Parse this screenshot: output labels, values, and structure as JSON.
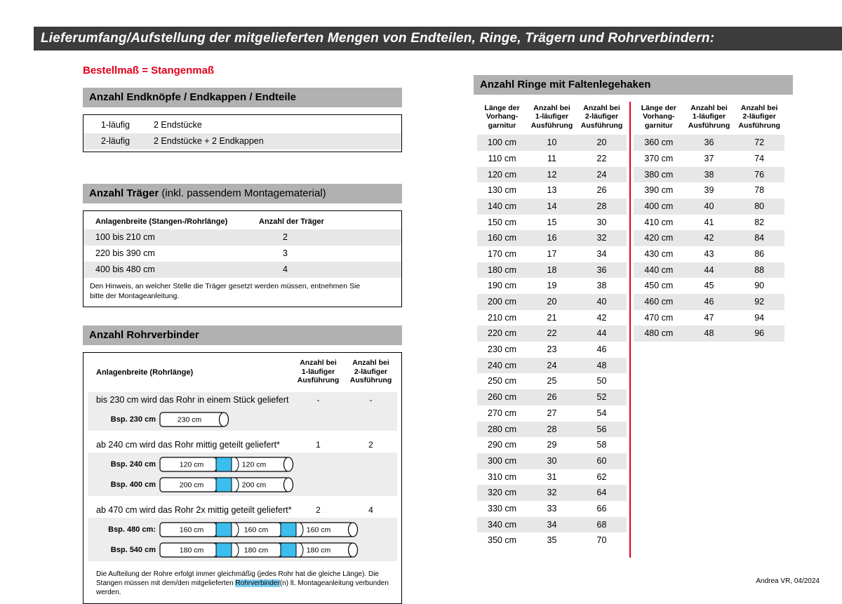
{
  "page": {
    "title": "Lieferumfang/Aufstellung der mitgelieferten Mengen von Endteilen, Ringe, Trägern und Rohrverbindern:",
    "subtitle": "Bestellmaß = Stangenmaß",
    "footer": "Andrea VR, 04/2024"
  },
  "colors": {
    "accent_red": "#e2001a",
    "header_bar_gray": "#b1b1b1",
    "title_bar_dark": "#3c3c3c",
    "row_stripe": "#e7e7e7",
    "connector_blue": "#3bbdee",
    "highlight_blue": "#7ed0f3"
  },
  "endteile": {
    "header": "Anzahl Endknöpfe / Endkappen / Endteile",
    "rows": [
      {
        "label": "1-läufig",
        "value": "2 Endstücke"
      },
      {
        "label": "2-läufig",
        "value": "2 Endstücke + 2 Endkappen"
      }
    ]
  },
  "traeger": {
    "header_bold": "Anzahl Träger",
    "header_rest": " (inkl. passendem Montagematerial)",
    "col1": "Anlagenbreite (Stangen-/Rohrlänge)",
    "col2": "Anzahl der Träger",
    "rows": [
      {
        "range": "100 bis 210 cm",
        "count": "2"
      },
      {
        "range": "220 bis 390 cm",
        "count": "3"
      },
      {
        "range": "400 bis 480 cm",
        "count": "4"
      }
    ],
    "note": "Den Hinweis, an welcher Stelle die Träger gesetzt werden müssen, entnehmen Sie bitte der Montageanleitung."
  },
  "rohrverbinder": {
    "header": "Anzahl Rohrverbinder",
    "col1": "Anlagenbreite (Rohrlänge)",
    "col2": "Anzahl bei\n1-läufiger\nAusführung",
    "col3": "Anzahl bei\n2-läufiger\nAusführung",
    "sections": [
      {
        "text": "bis 230 cm wird das Rohr in einem Stück geliefert",
        "count1": "-",
        "count2": "-",
        "examples": [
          {
            "label": "Bsp. 230 cm",
            "segments": [
              "230 cm"
            ]
          }
        ]
      },
      {
        "text": "ab 240 cm wird das Rohr mittig geteilt geliefert*",
        "count1": "1",
        "count2": "2",
        "examples": [
          {
            "label": "Bsp. 240 cm",
            "segments": [
              "120 cm",
              "120 cm"
            ]
          },
          {
            "label": "Bsp. 400 cm",
            "segments": [
              "200 cm",
              "200 cm"
            ]
          }
        ]
      },
      {
        "text": "ab 470 cm wird das Rohr 2x mittig geteilt geliefert*",
        "count1": "2",
        "count2": "4",
        "examples": [
          {
            "label": "Bsp. 480 cm:",
            "segments": [
              "160 cm",
              "160 cm",
              "160 cm"
            ]
          },
          {
            "label": "Bsp. 540 cm",
            "segments": [
              "180 cm",
              "180 cm",
              "180 cm"
            ]
          }
        ]
      }
    ],
    "footnote_pre": "Die Aufteilung der Rohre erfolgt immer gleichmäßig (jedes Rohr hat die gleiche Länge). Die Stangen müssen mit dem/den mitgelieferten ",
    "footnote_highlight": "Rohrverbinder",
    "footnote_post": "(n) lt. Montageanleitung verbunden werden."
  },
  "ringe": {
    "header": "Anzahl Ringe mit Faltenlegehaken",
    "col1": "Länge der\nVorhang-\ngarnitur",
    "col2": "Anzahl bei\n1-läufiger\nAusführung",
    "col3": "Anzahl bei\n2-läufiger\nAusführung",
    "left_rows": [
      [
        "100 cm",
        "10",
        "20"
      ],
      [
        "110 cm",
        "11",
        "22"
      ],
      [
        "120 cm",
        "12",
        "24"
      ],
      [
        "130 cm",
        "13",
        "26"
      ],
      [
        "140 cm",
        "14",
        "28"
      ],
      [
        "150 cm",
        "15",
        "30"
      ],
      [
        "160 cm",
        "16",
        "32"
      ],
      [
        "170 cm",
        "17",
        "34"
      ],
      [
        "180 cm",
        "18",
        "36"
      ],
      [
        "190 cm",
        "19",
        "38"
      ],
      [
        "200 cm",
        "20",
        "40"
      ],
      [
        "210 cm",
        "21",
        "42"
      ],
      [
        "220 cm",
        "22",
        "44"
      ],
      [
        "230 cm",
        "23",
        "46"
      ],
      [
        "240 cm",
        "24",
        "48"
      ],
      [
        "250 cm",
        "25",
        "50"
      ],
      [
        "260 cm",
        "26",
        "52"
      ],
      [
        "270 cm",
        "27",
        "54"
      ],
      [
        "280 cm",
        "28",
        "56"
      ],
      [
        "290 cm",
        "29",
        "58"
      ],
      [
        "300 cm",
        "30",
        "60"
      ],
      [
        "310 cm",
        "31",
        "62"
      ],
      [
        "320 cm",
        "32",
        "64"
      ],
      [
        "330 cm",
        "33",
        "66"
      ],
      [
        "340 cm",
        "34",
        "68"
      ],
      [
        "350 cm",
        "35",
        "70"
      ]
    ],
    "right_rows": [
      [
        "360 cm",
        "36",
        "72"
      ],
      [
        "370 cm",
        "37",
        "74"
      ],
      [
        "380 cm",
        "38",
        "76"
      ],
      [
        "390 cm",
        "39",
        "78"
      ],
      [
        "400 cm",
        "40",
        "80"
      ],
      [
        "410 cm",
        "41",
        "82"
      ],
      [
        "420 cm",
        "42",
        "84"
      ],
      [
        "430 cm",
        "43",
        "86"
      ],
      [
        "440 cm",
        "44",
        "88"
      ],
      [
        "450 cm",
        "45",
        "90"
      ],
      [
        "460 cm",
        "46",
        "92"
      ],
      [
        "470 cm",
        "47",
        "94"
      ],
      [
        "480 cm",
        "48",
        "96"
      ]
    ]
  }
}
